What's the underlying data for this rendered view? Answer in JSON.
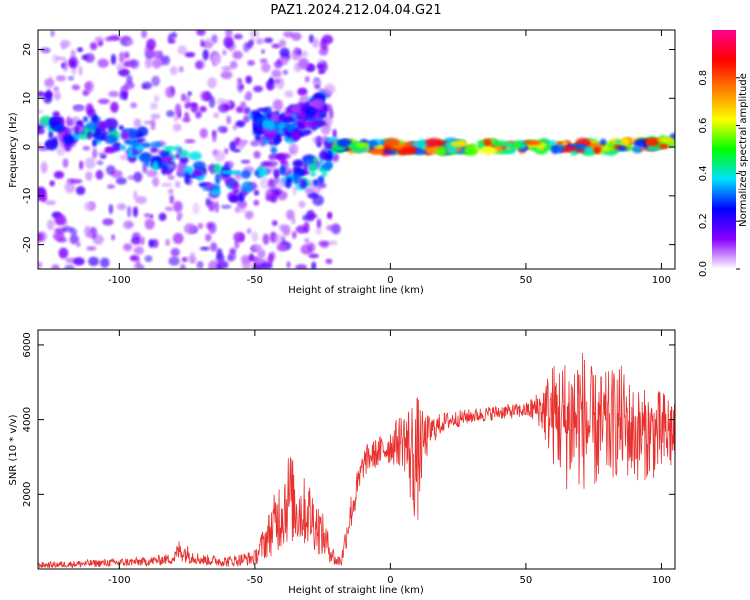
{
  "figure": {
    "title": "PAZ1.2024.212.04.04.G21"
  },
  "chart_data": [
    {
      "type": "heatmap",
      "title": "",
      "xlabel": "Height of straight line (km)",
      "ylabel": "Frequency (Hz)",
      "xlim": [
        -130,
        105
      ],
      "ylim": [
        -25,
        24
      ],
      "x_ticks": [
        -100,
        -50,
        0,
        50,
        100
      ],
      "x_tick_labels": [
        "-100",
        "-50",
        "0",
        "50",
        "100"
      ],
      "y_ticks": [
        -20,
        -10,
        0,
        10,
        20
      ],
      "y_tick_labels": [
        "-20",
        "-10",
        "0",
        "10",
        "20"
      ],
      "grid": false,
      "colorbar": {
        "label": "Normalized spectral amplitude",
        "range": [
          0,
          1
        ],
        "ticks": [
          0.0,
          0.2,
          0.4,
          0.6,
          0.8
        ],
        "tick_labels": [
          "0.0",
          "0.2",
          "0.4",
          "0.6",
          "0.8"
        ],
        "colors": [
          "#ffffff",
          "#8a00ff",
          "#0000ff",
          "#00e0ff",
          "#00ff00",
          "#ffff00",
          "#ff8000",
          "#ff0000",
          "#ff0090"
        ]
      },
      "features": [
        {
          "x": [
            -130,
            -20
          ],
          "frequency_trace": [
            [
              -130,
              3
            ],
            [
              -110,
              3
            ],
            [
              -100,
              2
            ],
            [
              -90,
              0
            ],
            [
              -75,
              -4
            ],
            [
              -60,
              -8
            ],
            [
              -50,
              -7
            ],
            [
              -45,
              -2
            ],
            [
              -35,
              -6
            ],
            [
              -25,
              -4
            ],
            [
              -20,
              0
            ]
          ],
          "peak_amplitude": 0.35
        },
        {
          "x": [
            -50,
            -25
          ],
          "frequency_trace": [
            [
              -50,
              5
            ],
            [
              -40,
              4
            ],
            [
              -30,
              6
            ],
            [
              -25,
              8
            ]
          ],
          "peak_amplitude": 0.3
        },
        {
          "x": [
            -20,
            105
          ],
          "frequency_trace": [
            [
              -20,
              0
            ],
            [
              0,
              0
            ],
            [
              10,
              0
            ],
            [
              50,
              0
            ],
            [
              80,
              0
            ],
            [
              105,
              1
            ]
          ],
          "peak_amplitude": 0.9
        }
      ]
    },
    {
      "type": "line",
      "title": "",
      "xlabel": "Height of straight line (km)",
      "ylabel": "SNR (10 * v/v)",
      "xlim": [
        -130,
        105
      ],
      "ylim": [
        0,
        6400
      ],
      "x_ticks": [
        -100,
        -50,
        0,
        50,
        100
      ],
      "x_tick_labels": [
        "-100",
        "-50",
        "0",
        "50",
        "100"
      ],
      "y_ticks": [
        2000,
        4000,
        6000
      ],
      "y_tick_labels": [
        "2000",
        "4000",
        "6000"
      ],
      "grid": false,
      "series_color": "#e8312f",
      "envelope": {
        "x": [
          -130,
          -110,
          -90,
          -80,
          -78,
          -70,
          -60,
          -50,
          -45,
          -40,
          -37,
          -35,
          -30,
          -25,
          -20,
          -18,
          -15,
          -12,
          -10,
          -8,
          -5,
          0,
          5,
          8,
          10,
          12,
          15,
          20,
          30,
          40,
          50,
          55,
          60,
          65,
          70,
          75,
          80,
          85,
          90,
          95,
          100,
          105
        ],
        "center": [
          100,
          150,
          200,
          280,
          500,
          250,
          200,
          300,
          900,
          1600,
          2000,
          1600,
          1500,
          900,
          200,
          250,
          1400,
          2200,
          2800,
          3000,
          3100,
          3300,
          3500,
          3000,
          2900,
          3400,
          3700,
          3950,
          4100,
          4200,
          4250,
          4300,
          4150,
          3900,
          4100,
          3700,
          3800,
          4000,
          3600,
          3600,
          3600,
          3700
        ],
        "spread": [
          80,
          100,
          120,
          150,
          300,
          150,
          150,
          200,
          600,
          1100,
          1300,
          1000,
          900,
          600,
          150,
          200,
          500,
          500,
          400,
          400,
          400,
          500,
          800,
          1600,
          1800,
          800,
          400,
          250,
          200,
          200,
          200,
          500,
          1400,
          1800,
          2000,
          1600,
          1500,
          1500,
          1300,
          1200,
          1200,
          1100
        ]
      }
    }
  ]
}
